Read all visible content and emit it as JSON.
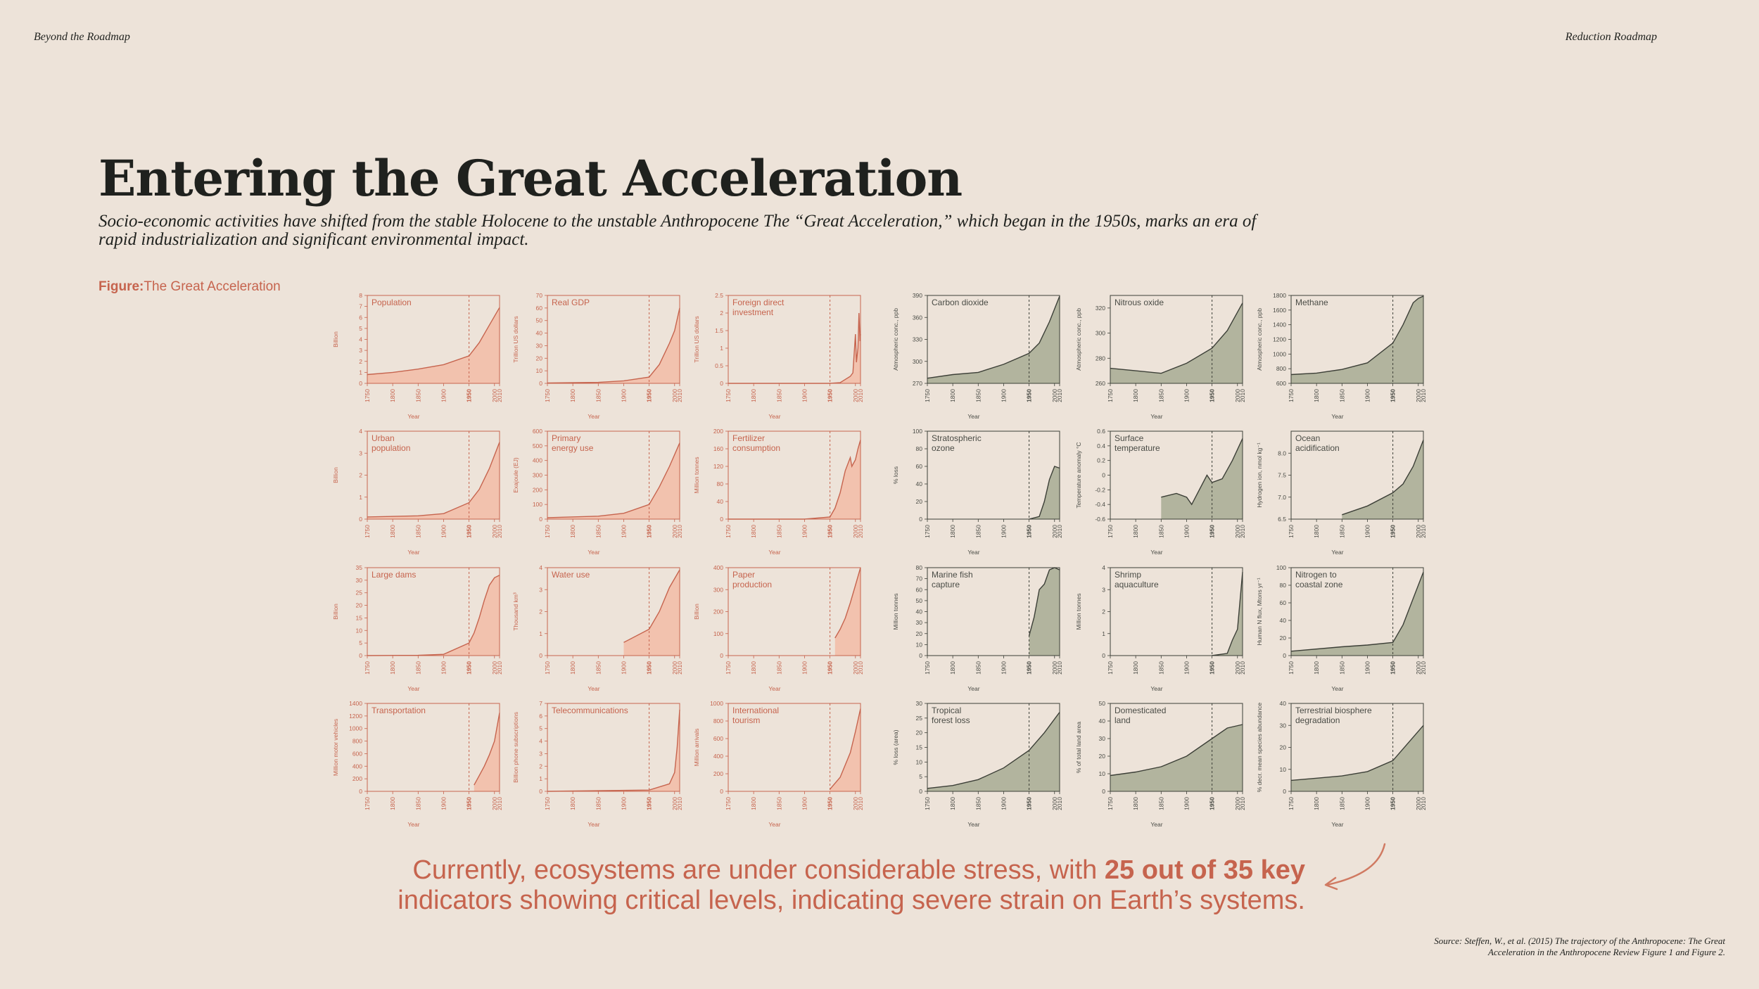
{
  "header": {
    "left": "Beyond the Roadmap",
    "right": "Reduction Roadmap"
  },
  "title": "Entering the Great Acceleration",
  "subtitle": "Socio-economic activities have shifted from the stable Holocene to the unstable Anthropocene  The “Great Acceleration,” which began in the 1950s, marks an era of rapid industrialization and significant environmental impact.",
  "figure_label": {
    "prefix": "Figure:",
    "text": "The Great Acceleration"
  },
  "callout": {
    "before": "Currently, ecosystems are under considerable stress, with ",
    "bold": "25 out of 35 key",
    "after": " indicators showing critical levels, indicating severe strain on Earth’s systems."
  },
  "source": "Source: Steffen, W., et al. (2015) The trajectory of the Anthropocene: The Great Acceleration in the Anthropocene Review Figure 1 and Figure 2.",
  "colors": {
    "socio": "#c6644e",
    "socio_fill": "#f2c2ae",
    "earth": "#3c3f37",
    "earth_fill": "#b2b49e",
    "background": "#ede3d9"
  },
  "chart_data": {
    "type": "area",
    "xlim": [
      1750,
      2010
    ],
    "xticks": [
      "1750",
      "1800",
      "1850",
      "1900",
      "1950",
      "2000",
      "2010"
    ],
    "xlabel": "Year",
    "marker_year": 1950,
    "panels": [
      {
        "group": "socio",
        "title": [
          "Population"
        ],
        "ylabel": "Billion",
        "ylim": [
          0,
          8
        ],
        "yticks": [
          "0",
          "1",
          "2",
          "3",
          "4",
          "5",
          "6",
          "7",
          "8"
        ],
        "x": [
          1750,
          1800,
          1850,
          1900,
          1950,
          1970,
          1990,
          2010
        ],
        "y": [
          0.8,
          1.0,
          1.3,
          1.7,
          2.5,
          3.7,
          5.3,
          6.9
        ]
      },
      {
        "group": "socio",
        "title": [
          "Real GDP"
        ],
        "ylabel": "Trillion US dollars",
        "ylim": [
          0,
          70
        ],
        "yticks": [
          "0",
          "10",
          "20",
          "30",
          "40",
          "50",
          "60",
          "70"
        ],
        "x": [
          1750,
          1850,
          1900,
          1950,
          1970,
          1990,
          2000,
          2010
        ],
        "y": [
          0.3,
          0.8,
          2,
          5,
          15,
          32,
          42,
          60
        ]
      },
      {
        "group": "socio",
        "title": [
          "Foreign direct",
          "investment"
        ],
        "ylabel": "Trillion US dollars",
        "ylim": [
          0,
          2.5
        ],
        "yticks": [
          "0",
          "0.5",
          "1",
          "1.5",
          "2",
          "2.5"
        ],
        "x": [
          1750,
          1950,
          1970,
          1990,
          1995,
          2000,
          2002,
          2005,
          2007,
          2009,
          2010
        ],
        "y": [
          0,
          0,
          0.02,
          0.2,
          0.3,
          1.4,
          0.6,
          1,
          2,
          1.2,
          1.4
        ]
      },
      {
        "group": "socio",
        "title": [
          "Urban",
          "population"
        ],
        "ylabel": "Billion",
        "ylim": [
          0,
          4
        ],
        "yticks": [
          "0",
          "1",
          "2",
          "3",
          "4"
        ],
        "x": [
          1750,
          1850,
          1900,
          1950,
          1970,
          1990,
          2010
        ],
        "y": [
          0.1,
          0.15,
          0.25,
          0.75,
          1.35,
          2.3,
          3.5
        ]
      },
      {
        "group": "socio",
        "title": [
          "Primary",
          "energy use"
        ],
        "ylabel": "Exajoule (EJ)",
        "ylim": [
          0,
          600
        ],
        "yticks": [
          "0",
          "100",
          "200",
          "300",
          "400",
          "500",
          "600"
        ],
        "x": [
          1750,
          1850,
          1900,
          1950,
          1970,
          1990,
          2010
        ],
        "y": [
          10,
          20,
          40,
          100,
          220,
          360,
          520
        ]
      },
      {
        "group": "socio",
        "title": [
          "Fertilizer",
          "consumption"
        ],
        "ylabel": "Million tonnes",
        "ylim": [
          0,
          200
        ],
        "yticks": [
          "0",
          "40",
          "80",
          "120",
          "160",
          "200"
        ],
        "x": [
          1750,
          1900,
          1950,
          1960,
          1970,
          1980,
          1990,
          1993,
          2000,
          2005,
          2010
        ],
        "y": [
          0,
          0,
          5,
          25,
          60,
          110,
          140,
          120,
          135,
          160,
          180
        ]
      },
      {
        "group": "socio",
        "title": [
          "Large dams"
        ],
        "ylabel": "Billion",
        "ylim": [
          0,
          35
        ],
        "yticks": [
          "0",
          "5",
          "10",
          "15",
          "20",
          "25",
          "30",
          "35"
        ],
        "x": [
          1750,
          1850,
          1900,
          1950,
          1960,
          1970,
          1980,
          1990,
          2000,
          2010
        ],
        "y": [
          0,
          0.1,
          0.5,
          5,
          9,
          15,
          22,
          28,
          31,
          32
        ]
      },
      {
        "group": "socio",
        "title": [
          "Water use"
        ],
        "ylabel": "Thousand km³",
        "ylim": [
          0,
          4
        ],
        "yticks": [
          "0",
          "1",
          "2",
          "3",
          "4"
        ],
        "x": [
          1900,
          1950,
          1970,
          1990,
          2010
        ],
        "y": [
          0.6,
          1.2,
          2,
          3.1,
          3.9
        ]
      },
      {
        "group": "socio",
        "title": [
          "Paper",
          "production"
        ],
        "ylabel": "Billion",
        "ylim": [
          0,
          400
        ],
        "yticks": [
          "0",
          "100",
          "200",
          "300",
          "400"
        ],
        "x": [
          1960,
          1970,
          1980,
          1990,
          2000,
          2010
        ],
        "y": [
          80,
          120,
          170,
          240,
          320,
          400
        ]
      },
      {
        "group": "socio",
        "title": [
          "Transportation"
        ],
        "ylabel": "Million motor vehicles",
        "ylim": [
          0,
          1400
        ],
        "yticks": [
          "0",
          "200",
          "400",
          "600",
          "800",
          "1000",
          "1200",
          "1400"
        ],
        "x": [
          1960,
          1970,
          1980,
          1990,
          2000,
          2010
        ],
        "y": [
          100,
          250,
          400,
          580,
          800,
          1250
        ]
      },
      {
        "group": "socio",
        "title": [
          "Telecommunications"
        ],
        "ylabel": "Billion phone subscriptions",
        "ylim": [
          0,
          7
        ],
        "yticks": [
          "0",
          "1",
          "2",
          "3",
          "4",
          "5",
          "6",
          "7"
        ],
        "x": [
          1750,
          1950,
          1990,
          2000,
          2005,
          2010
        ],
        "y": [
          0,
          0.1,
          0.6,
          1.5,
          3.5,
          6.5
        ]
      },
      {
        "group": "socio",
        "title": [
          "International",
          "tourism"
        ],
        "ylabel": "Million arrivals",
        "ylim": [
          0,
          1000
        ],
        "yticks": [
          "0",
          "200",
          "400",
          "600",
          "800",
          "1000"
        ],
        "x": [
          1950,
          1970,
          1990,
          2000,
          2010
        ],
        "y": [
          25,
          160,
          440,
          680,
          940
        ]
      },
      {
        "group": "earth",
        "title": [
          "Carbon dioxide"
        ],
        "ylabel": "Atmospheric conc., ppb",
        "ylim": [
          270,
          390
        ],
        "yticks": [
          "270",
          "300",
          "330",
          "360",
          "390"
        ],
        "x": [
          1750,
          1800,
          1850,
          1900,
          1950,
          1970,
          1990,
          2010
        ],
        "y": [
          277,
          282,
          285,
          296,
          311,
          325,
          354,
          389
        ]
      },
      {
        "group": "earth",
        "title": [
          "Nitrous oxide"
        ],
        "ylabel": "Atmospheric conc., ppb",
        "ylim": [
          260,
          330
        ],
        "yticks": [
          "260",
          "280",
          "300",
          "320"
        ],
        "x": [
          1750,
          1800,
          1850,
          1900,
          1950,
          1980,
          2010
        ],
        "y": [
          272,
          270,
          268,
          276,
          288,
          302,
          324
        ]
      },
      {
        "group": "earth",
        "title": [
          "Methane"
        ],
        "ylabel": "Atmospheric conc., ppb",
        "ylim": [
          600,
          1800
        ],
        "yticks": [
          "600",
          "800",
          "1000",
          "1200",
          "1400",
          "1600",
          "1800"
        ],
        "x": [
          1750,
          1800,
          1850,
          1900,
          1950,
          1970,
          1990,
          2000,
          2010
        ],
        "y": [
          720,
          740,
          790,
          880,
          1150,
          1400,
          1700,
          1760,
          1790
        ]
      },
      {
        "group": "earth",
        "title": [
          "Stratospheric",
          "ozone"
        ],
        "ylabel": "% loss",
        "ylim": [
          0,
          100
        ],
        "yticks": [
          "0",
          "20",
          "40",
          "60",
          "80",
          "100"
        ],
        "x": [
          1950,
          1970,
          1980,
          1990,
          2000,
          2010
        ],
        "y": [
          0,
          3,
          20,
          45,
          60,
          58
        ]
      },
      {
        "group": "earth",
        "title": [
          "Surface",
          "temperature"
        ],
        "ylabel": "Temperature anomaly °C",
        "ylim": [
          -0.6,
          0.6
        ],
        "yticks": [
          "-0.6",
          "-0.4",
          "-0.2",
          "0",
          "0.2",
          "0.4",
          "0.6"
        ],
        "x": [
          1850,
          1880,
          1900,
          1910,
          1940,
          1950,
          1970,
          1990,
          2010
        ],
        "y": [
          -0.3,
          -0.25,
          -0.3,
          -0.4,
          0,
          -0.1,
          -0.05,
          0.2,
          0.5
        ]
      },
      {
        "group": "earth",
        "title": [
          "Ocean",
          "acidification"
        ],
        "ylabel": "Hydrogen ion, nmol kg⁻¹",
        "ylim": [
          6.5,
          8.5
        ],
        "yticks": [
          "6.5",
          "7.0",
          "7.5",
          "8.0"
        ],
        "x": [
          1850,
          1900,
          1950,
          1970,
          1990,
          2010
        ],
        "y": [
          6.6,
          6.8,
          7.1,
          7.3,
          7.7,
          8.3
        ]
      },
      {
        "group": "earth",
        "title": [
          "Marine fish",
          "capture"
        ],
        "ylabel": "Million tonnes",
        "ylim": [
          0,
          80
        ],
        "yticks": [
          "0",
          "10",
          "20",
          "30",
          "40",
          "50",
          "60",
          "70",
          "80"
        ],
        "x": [
          1950,
          1960,
          1970,
          1980,
          1990,
          2000,
          2010
        ],
        "y": [
          18,
          35,
          60,
          65,
          78,
          80,
          78
        ]
      },
      {
        "group": "earth",
        "title": [
          "Shrimp",
          "aquaculture"
        ],
        "ylabel": "Million tonnes",
        "ylim": [
          0,
          4
        ],
        "yticks": [
          "0",
          "1",
          "2",
          "3",
          "4"
        ],
        "x": [
          1950,
          1980,
          1990,
          2000,
          2005,
          2010
        ],
        "y": [
          0,
          0.1,
          0.7,
          1.2,
          2.5,
          3.8
        ]
      },
      {
        "group": "earth",
        "title": [
          "Nitrogen to",
          "coastal zone"
        ],
        "ylabel": "Human N flux, Mtons yr⁻¹",
        "ylim": [
          0,
          100
        ],
        "yticks": [
          "0",
          "20",
          "40",
          "60",
          "80",
          "100"
        ],
        "x": [
          1750,
          1850,
          1900,
          1950,
          1970,
          1990,
          2010
        ],
        "y": [
          5,
          10,
          12,
          15,
          35,
          65,
          95
        ]
      },
      {
        "group": "earth",
        "title": [
          "Tropical",
          "forest loss"
        ],
        "ylabel": "% loss (area)",
        "ylim": [
          0,
          30
        ],
        "yticks": [
          "0",
          "5",
          "10",
          "15",
          "20",
          "25",
          "30"
        ],
        "x": [
          1750,
          1800,
          1850,
          1900,
          1950,
          1980,
          2010
        ],
        "y": [
          1,
          2,
          4,
          8,
          14,
          20,
          27
        ]
      },
      {
        "group": "earth",
        "title": [
          "Domesticated",
          "land"
        ],
        "ylabel": "% of total land area",
        "ylim": [
          0,
          50
        ],
        "yticks": [
          "0",
          "10",
          "20",
          "30",
          "40",
          "50"
        ],
        "x": [
          1750,
          1800,
          1850,
          1900,
          1950,
          1980,
          2010
        ],
        "y": [
          9,
          11,
          14,
          20,
          30,
          36,
          38
        ]
      },
      {
        "group": "earth",
        "title": [
          "Terrestrial biosphere",
          "degradation"
        ],
        "ylabel": "% decr. mean species abundance",
        "ylim": [
          0,
          40
        ],
        "yticks": [
          "0",
          "10",
          "20",
          "30",
          "40"
        ],
        "x": [
          1750,
          1800,
          1850,
          1900,
          1950,
          1980,
          2010
        ],
        "y": [
          5,
          6,
          7,
          9,
          14,
          22,
          30
        ]
      }
    ]
  }
}
